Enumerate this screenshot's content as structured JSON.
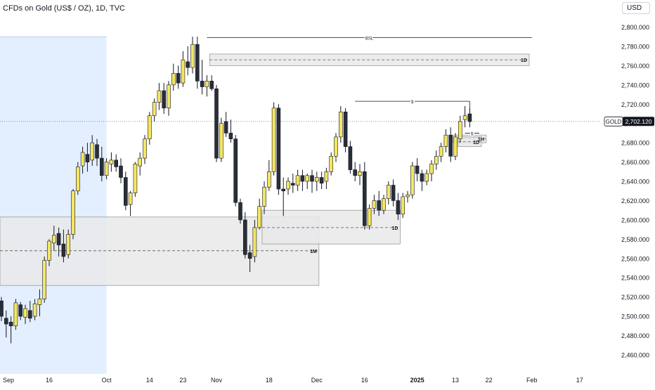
{
  "header": {
    "title": "CFDs on Gold (US$ / OZ), 1D, TVC",
    "currency_label": "USD"
  },
  "colors": {
    "bull": "#f5e663",
    "bear": "#2a2e39",
    "wick": "#131722",
    "highlight": "#e3efff",
    "zone_fill": "#e9e9ea",
    "zone_stroke": "#9a9a9a",
    "price_badge": "#131722"
  },
  "chart_data": {
    "type": "candlestick",
    "title": "CFDs on Gold (US$ / OZ), 1D, TVC",
    "y_axis": {
      "position": "right",
      "ylim": [
        2450,
        2810
      ],
      "ticks": [
        2460,
        2480,
        2500,
        2520,
        2540,
        2560,
        2580,
        2600,
        2620,
        2640,
        2660,
        2680,
        2700,
        2720,
        2740,
        2760,
        2780,
        2800
      ],
      "tick_labels": [
        "2,460.000",
        "2,480.000",
        "2,500.000",
        "2,520.000",
        "2,540.000",
        "2,560.000",
        "2,580.000",
        "2,600.000",
        "2,620.000",
        "2,640.000",
        "2,660.000",
        "2,680.000",
        "2,700.000",
        "2,720.000",
        "2,740.000",
        "2,760.000",
        "2,780.000",
        "2,800.000"
      ]
    },
    "x_axis": {
      "labels": [
        {
          "text": "Sep",
          "bar": 0,
          "bold": false
        },
        {
          "text": "16",
          "bar": 10,
          "bold": false
        },
        {
          "text": "Oct",
          "bar": 22,
          "bold": false
        },
        {
          "text": "14",
          "bar": 31,
          "bold": false
        },
        {
          "text": "23",
          "bar": 38,
          "bold": false
        },
        {
          "text": "Nov",
          "bar": 45,
          "bold": false
        },
        {
          "text": "18",
          "bar": 56,
          "bold": false
        },
        {
          "text": "Dec",
          "bar": 66,
          "bold": false
        },
        {
          "text": "16",
          "bar": 76,
          "bold": false
        },
        {
          "text": "2025",
          "bar": 87,
          "bold": true
        },
        {
          "text": "13",
          "bar": 95,
          "bold": false
        },
        {
          "text": "22",
          "bar": 102,
          "bold": false
        },
        {
          "text": "Feb",
          "bar": 111,
          "bold": false
        },
        {
          "text": "17",
          "bar": 121,
          "bold": false
        }
      ]
    },
    "candles": [
      {
        "o": 2516,
        "h": 2520,
        "l": 2495,
        "c": 2500
      },
      {
        "o": 2498,
        "h": 2506,
        "l": 2478,
        "c": 2492
      },
      {
        "o": 2494,
        "h": 2500,
        "l": 2472,
        "c": 2490
      },
      {
        "o": 2490,
        "h": 2518,
        "l": 2486,
        "c": 2514
      },
      {
        "o": 2512,
        "h": 2515,
        "l": 2496,
        "c": 2500
      },
      {
        "o": 2499,
        "h": 2512,
        "l": 2492,
        "c": 2508
      },
      {
        "o": 2506,
        "h": 2516,
        "l": 2494,
        "c": 2498
      },
      {
        "o": 2500,
        "h": 2518,
        "l": 2496,
        "c": 2513
      },
      {
        "o": 2512,
        "h": 2528,
        "l": 2500,
        "c": 2518
      },
      {
        "o": 2518,
        "h": 2562,
        "l": 2514,
        "c": 2558
      },
      {
        "o": 2558,
        "h": 2580,
        "l": 2552,
        "c": 2578
      },
      {
        "o": 2576,
        "h": 2594,
        "l": 2568,
        "c": 2584
      },
      {
        "o": 2586,
        "h": 2592,
        "l": 2562,
        "c": 2574
      },
      {
        "o": 2575,
        "h": 2590,
        "l": 2556,
        "c": 2562
      },
      {
        "o": 2564,
        "h": 2590,
        "l": 2560,
        "c": 2585
      },
      {
        "o": 2585,
        "h": 2632,
        "l": 2580,
        "c": 2630
      },
      {
        "o": 2630,
        "h": 2660,
        "l": 2626,
        "c": 2655
      },
      {
        "o": 2656,
        "h": 2676,
        "l": 2648,
        "c": 2670
      },
      {
        "o": 2668,
        "h": 2680,
        "l": 2650,
        "c": 2660
      },
      {
        "o": 2662,
        "h": 2688,
        "l": 2656,
        "c": 2680
      },
      {
        "o": 2678,
        "h": 2684,
        "l": 2656,
        "c": 2664
      },
      {
        "o": 2664,
        "h": 2676,
        "l": 2640,
        "c": 2646
      },
      {
        "o": 2646,
        "h": 2664,
        "l": 2642,
        "c": 2660
      },
      {
        "o": 2658,
        "h": 2670,
        "l": 2650,
        "c": 2662
      },
      {
        "o": 2662,
        "h": 2668,
        "l": 2650,
        "c": 2655
      },
      {
        "o": 2656,
        "h": 2664,
        "l": 2638,
        "c": 2644
      },
      {
        "o": 2644,
        "h": 2650,
        "l": 2610,
        "c": 2615
      },
      {
        "o": 2616,
        "h": 2630,
        "l": 2604,
        "c": 2628
      },
      {
        "o": 2628,
        "h": 2660,
        "l": 2624,
        "c": 2658
      },
      {
        "o": 2656,
        "h": 2670,
        "l": 2646,
        "c": 2664
      },
      {
        "o": 2664,
        "h": 2688,
        "l": 2658,
        "c": 2684
      },
      {
        "o": 2684,
        "h": 2712,
        "l": 2678,
        "c": 2708
      },
      {
        "o": 2708,
        "h": 2726,
        "l": 2702,
        "c": 2722
      },
      {
        "o": 2722,
        "h": 2742,
        "l": 2714,
        "c": 2734
      },
      {
        "o": 2734,
        "h": 2742,
        "l": 2710,
        "c": 2716
      },
      {
        "o": 2716,
        "h": 2744,
        "l": 2708,
        "c": 2740
      },
      {
        "o": 2740,
        "h": 2762,
        "l": 2734,
        "c": 2752
      },
      {
        "o": 2752,
        "h": 2760,
        "l": 2736,
        "c": 2742
      },
      {
        "o": 2742,
        "h": 2775,
        "l": 2738,
        "c": 2766
      },
      {
        "o": 2764,
        "h": 2780,
        "l": 2750,
        "c": 2758
      },
      {
        "o": 2758,
        "h": 2790,
        "l": 2752,
        "c": 2782
      },
      {
        "o": 2782,
        "h": 2790,
        "l": 2736,
        "c": 2744
      },
      {
        "o": 2744,
        "h": 2766,
        "l": 2730,
        "c": 2738
      },
      {
        "o": 2738,
        "h": 2750,
        "l": 2728,
        "c": 2744
      },
      {
        "o": 2744,
        "h": 2750,
        "l": 2734,
        "c": 2736
      },
      {
        "o": 2736,
        "h": 2740,
        "l": 2660,
        "c": 2664
      },
      {
        "o": 2664,
        "h": 2706,
        "l": 2660,
        "c": 2700
      },
      {
        "o": 2702,
        "h": 2712,
        "l": 2686,
        "c": 2690
      },
      {
        "o": 2690,
        "h": 2704,
        "l": 2680,
        "c": 2684
      },
      {
        "o": 2684,
        "h": 2688,
        "l": 2614,
        "c": 2618
      },
      {
        "o": 2618,
        "h": 2622,
        "l": 2596,
        "c": 2600
      },
      {
        "o": 2600,
        "h": 2608,
        "l": 2560,
        "c": 2564
      },
      {
        "o": 2566,
        "h": 2574,
        "l": 2546,
        "c": 2560
      },
      {
        "o": 2562,
        "h": 2600,
        "l": 2556,
        "c": 2592
      },
      {
        "o": 2592,
        "h": 2622,
        "l": 2590,
        "c": 2614
      },
      {
        "o": 2614,
        "h": 2640,
        "l": 2606,
        "c": 2634
      },
      {
        "o": 2634,
        "h": 2662,
        "l": 2630,
        "c": 2650
      },
      {
        "o": 2650,
        "h": 2722,
        "l": 2646,
        "c": 2716
      },
      {
        "o": 2716,
        "h": 2720,
        "l": 2626,
        "c": 2632
      },
      {
        "o": 2632,
        "h": 2644,
        "l": 2604,
        "c": 2630
      },
      {
        "o": 2632,
        "h": 2644,
        "l": 2626,
        "c": 2640
      },
      {
        "o": 2638,
        "h": 2648,
        "l": 2628,
        "c": 2636
      },
      {
        "o": 2636,
        "h": 2652,
        "l": 2630,
        "c": 2646
      },
      {
        "o": 2646,
        "h": 2652,
        "l": 2630,
        "c": 2640
      },
      {
        "o": 2640,
        "h": 2648,
        "l": 2632,
        "c": 2646
      },
      {
        "o": 2646,
        "h": 2652,
        "l": 2628,
        "c": 2640
      },
      {
        "o": 2640,
        "h": 2650,
        "l": 2630,
        "c": 2644
      },
      {
        "o": 2644,
        "h": 2650,
        "l": 2632,
        "c": 2638
      },
      {
        "o": 2640,
        "h": 2654,
        "l": 2632,
        "c": 2650
      },
      {
        "o": 2650,
        "h": 2670,
        "l": 2646,
        "c": 2666
      },
      {
        "o": 2666,
        "h": 2690,
        "l": 2660,
        "c": 2686
      },
      {
        "o": 2686,
        "h": 2718,
        "l": 2680,
        "c": 2712
      },
      {
        "o": 2712,
        "h": 2716,
        "l": 2670,
        "c": 2676
      },
      {
        "o": 2676,
        "h": 2682,
        "l": 2648,
        "c": 2652
      },
      {
        "o": 2652,
        "h": 2660,
        "l": 2640,
        "c": 2646
      },
      {
        "o": 2646,
        "h": 2658,
        "l": 2636,
        "c": 2650
      },
      {
        "o": 2650,
        "h": 2660,
        "l": 2590,
        "c": 2594
      },
      {
        "o": 2594,
        "h": 2616,
        "l": 2590,
        "c": 2612
      },
      {
        "o": 2612,
        "h": 2626,
        "l": 2606,
        "c": 2620
      },
      {
        "o": 2620,
        "h": 2630,
        "l": 2604,
        "c": 2610
      },
      {
        "o": 2610,
        "h": 2626,
        "l": 2606,
        "c": 2622
      },
      {
        "o": 2622,
        "h": 2640,
        "l": 2616,
        "c": 2636
      },
      {
        "o": 2636,
        "h": 2642,
        "l": 2614,
        "c": 2620
      },
      {
        "o": 2620,
        "h": 2628,
        "l": 2600,
        "c": 2606
      },
      {
        "o": 2606,
        "h": 2628,
        "l": 2602,
        "c": 2624
      },
      {
        "o": 2624,
        "h": 2630,
        "l": 2618,
        "c": 2626
      },
      {
        "o": 2626,
        "h": 2660,
        "l": 2622,
        "c": 2656
      },
      {
        "o": 2656,
        "h": 2664,
        "l": 2640,
        "c": 2648
      },
      {
        "o": 2648,
        "h": 2652,
        "l": 2630,
        "c": 2640
      },
      {
        "o": 2640,
        "h": 2652,
        "l": 2636,
        "c": 2648
      },
      {
        "o": 2648,
        "h": 2662,
        "l": 2640,
        "c": 2658
      },
      {
        "o": 2658,
        "h": 2672,
        "l": 2652,
        "c": 2666
      },
      {
        "o": 2666,
        "h": 2680,
        "l": 2660,
        "c": 2676
      },
      {
        "o": 2676,
        "h": 2694,
        "l": 2670,
        "c": 2688
      },
      {
        "o": 2688,
        "h": 2696,
        "l": 2660,
        "c": 2666
      },
      {
        "o": 2666,
        "h": 2690,
        "l": 2662,
        "c": 2686
      },
      {
        "o": 2684,
        "h": 2708,
        "l": 2680,
        "c": 2702
      },
      {
        "o": 2704,
        "h": 2718,
        "l": 2696,
        "c": 2708
      },
      {
        "o": 2710,
        "h": 2716,
        "l": 2696,
        "c": 2702
      }
    ],
    "shaded_region": {
      "from_bar": 0,
      "to_bar": 22
    },
    "levels": [
      {
        "kind": "liquidity",
        "label": "BSL",
        "price": 2789,
        "from_bar": 43,
        "to_bar": 111
      },
      {
        "kind": "liquidity",
        "label": "$",
        "price": 2723,
        "from_bar": 74,
        "to_bar": 98
      },
      {
        "kind": "liquidity",
        "label": "$",
        "price": 2690,
        "from_bar": 97,
        "to_bar": 100
      }
    ],
    "zones": [
      {
        "label": "1D",
        "top": 2772,
        "bottom": 2760,
        "mid": 2766,
        "from_bar": 44,
        "to_bar": 110
      },
      {
        "label": "1M",
        "top": 2603,
        "bottom": 2532,
        "mid": 2568,
        "from_bar": 0,
        "to_bar": 66
      },
      {
        "label": "1D",
        "top": 2610,
        "bottom": 2575,
        "mid": 2592,
        "from_bar": 55,
        "to_bar": 83
      },
      {
        "label": "1H",
        "top": 2688,
        "bottom": 2680,
        "mid": 2684,
        "from_bar": 95,
        "to_bar": 101
      },
      {
        "label": "1D",
        "top": 2686,
        "bottom": 2676,
        "mid": 2681,
        "from_bar": 96,
        "to_bar": 100
      }
    ],
    "last_price": {
      "label": "GOLD",
      "value": 2702.12,
      "text": "2,702.120"
    }
  }
}
